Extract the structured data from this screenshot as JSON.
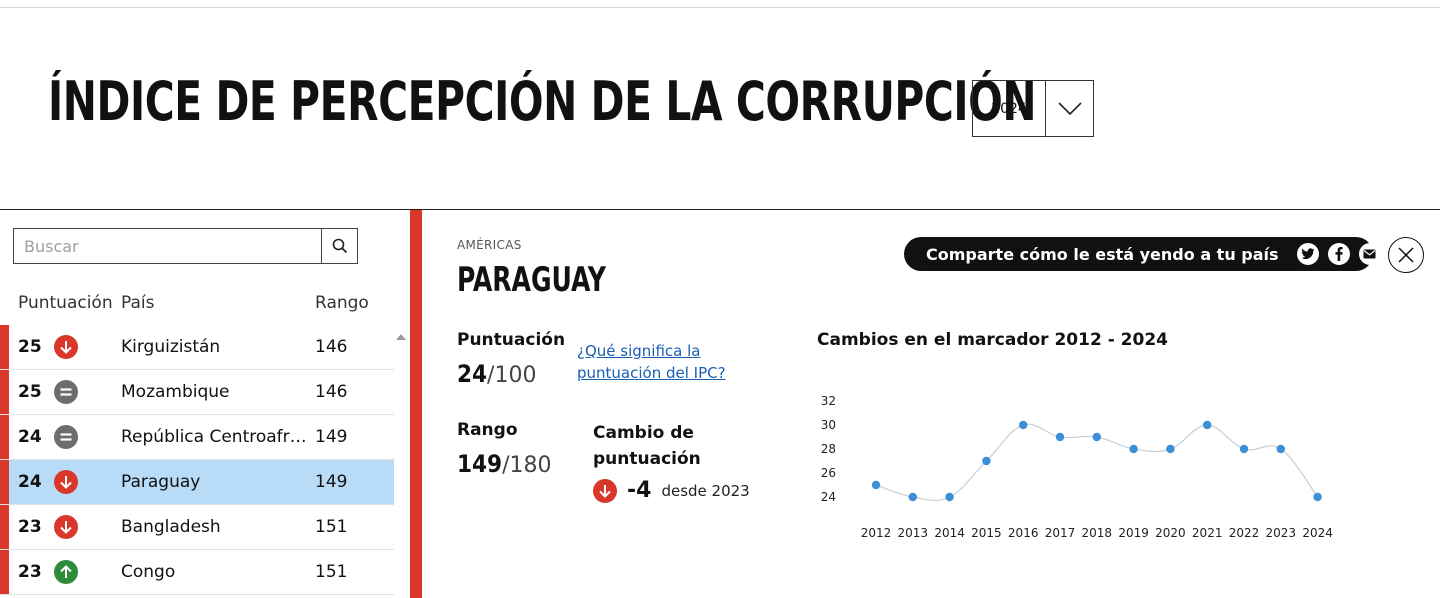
{
  "header": {
    "title": "ÍNDICE DE PERCEPCIÓN DE LA CORRUPCIÓN",
    "year_select": "2024"
  },
  "search": {
    "placeholder": "Buscar"
  },
  "table": {
    "headers": {
      "score": "Puntuación",
      "country": "País",
      "rank": "Rango"
    },
    "rows": [
      {
        "score": "25",
        "trend": "down",
        "country": "Kirguizistán",
        "rank": "146"
      },
      {
        "score": "25",
        "trend": "equal",
        "country": "Mozambique",
        "rank": "146"
      },
      {
        "score": "24",
        "trend": "equal",
        "country": "República Centroafricana",
        "rank": "149"
      },
      {
        "score": "24",
        "trend": "down",
        "country": "Paraguay",
        "rank": "149",
        "selected": true
      },
      {
        "score": "23",
        "trend": "down",
        "country": "Bangladesh",
        "rank": "151"
      },
      {
        "score": "23",
        "trend": "up",
        "country": "Congo",
        "rank": "151"
      }
    ]
  },
  "detail": {
    "region": "AMÉRICAS",
    "country": "PARAGUAY",
    "share_text": "Comparte cómo le está yendo a tu país",
    "score_label": "Puntuación",
    "score_value": "24",
    "score_max": "/100",
    "help_link": "¿Qué significa la puntuación del IPC?",
    "rank_label": "Rango",
    "rank_value": "149",
    "rank_max": "/180",
    "change_label": "Cambio de puntuación",
    "change_value": "-4",
    "change_since": "desde 2023",
    "chart_title": "Cambios en el marcador 2012 - 2024"
  },
  "colors": {
    "accent_red": "#d8372a",
    "selected_row": "#b8dcf8",
    "chart_point": "#3a8fd6",
    "link": "#1a5fb4"
  },
  "chart_data": {
    "type": "line",
    "title": "Cambios en el marcador 2012 - 2024",
    "x": [
      "2012",
      "2013",
      "2014",
      "2015",
      "2016",
      "2017",
      "2018",
      "2019",
      "2020",
      "2021",
      "2022",
      "2023",
      "2024"
    ],
    "values": [
      25,
      24,
      24,
      27,
      30,
      29,
      29,
      28,
      28,
      30,
      28,
      28,
      24
    ],
    "yticks": [
      24,
      26,
      28,
      30,
      32
    ],
    "ylim": [
      24,
      32
    ],
    "grid": false,
    "legend": "none"
  }
}
